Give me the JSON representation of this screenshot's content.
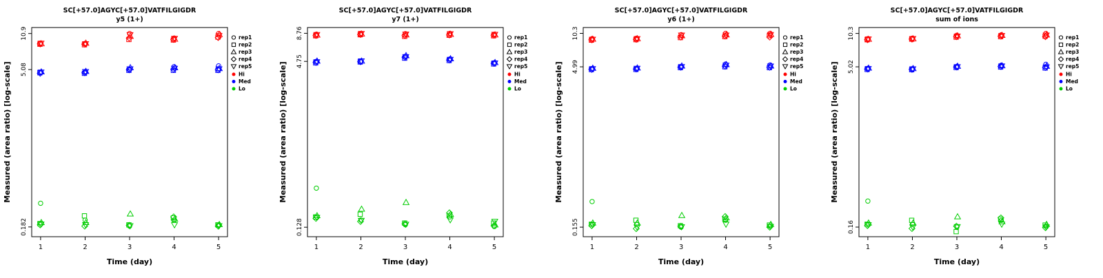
{
  "figure": {
    "background": "#ffffff",
    "axis_color": "#000000"
  },
  "legend": {
    "rep_labels": [
      "rep1",
      "rep2",
      "rep3",
      "rep4",
      "rep5"
    ],
    "rep_shapes": [
      "circle",
      "square",
      "triangle-up",
      "diamond",
      "triangle-down"
    ],
    "group_labels": [
      "Hi",
      "Med",
      "Lo"
    ],
    "group_colors": [
      "#FF0000",
      "#0000FF",
      "#00CC00"
    ]
  },
  "chart_data": [
    {
      "type": "scatter",
      "title": "SC[+57.0]AGYC[+57.0]VATFILGIGDR",
      "subtitle": "y5 (1+)",
      "xlabel": "Time (day)",
      "ylabel": "Measured (area ratio) [log-scale]",
      "x_ticks": [
        1,
        2,
        3,
        4,
        5
      ],
      "y_ticks": [
        0.182,
        5.08,
        10.9
      ],
      "y_tick_labels": [
        "0.182",
        "5.08",
        "10.9"
      ],
      "y_scale": "log",
      "series": [
        {
          "name": "Hi",
          "color": "#FF0000",
          "values": [
            [
              8.9,
              8.7,
              8.8,
              8.75,
              8.85
            ],
            [
              8.8,
              8.6,
              8.9,
              8.7,
              8.75
            ],
            [
              10.9,
              9.6,
              10.3,
              9.9,
              10.6
            ],
            [
              9.9,
              9.5,
              9.7,
              9.6,
              9.8
            ],
            [
              10.9,
              10.1,
              10.7,
              10.0,
              10.4
            ]
          ]
        },
        {
          "name": "Med",
          "color": "#0000FF",
          "values": [
            [
              4.8,
              4.75,
              4.85,
              4.7,
              4.8
            ],
            [
              4.8,
              4.7,
              4.9,
              4.75,
              4.85
            ],
            [
              5.1,
              5.0,
              5.3,
              5.05,
              5.15
            ],
            [
              5.4,
              5.0,
              5.3,
              5.1,
              5.2
            ],
            [
              5.5,
              5.0,
              5.2,
              5.05,
              5.15
            ]
          ]
        },
        {
          "name": "Lo",
          "color": "#00CC00",
          "values": [
            [
              0.3,
              0.195,
              0.2,
              0.19,
              0.193
            ],
            [
              0.21,
              0.23,
              0.2,
              0.185,
              0.19
            ],
            [
              0.185,
              0.19,
              0.24,
              0.188,
              0.186
            ],
            [
              0.21,
              0.22,
              0.215,
              0.225,
              0.19
            ],
            [
              0.188,
              0.19,
              0.192,
              0.185,
              0.186
            ]
          ]
        }
      ]
    },
    {
      "type": "scatter",
      "title": "SC[+57.0]AGYC[+57.0]VATFILGIGDR",
      "subtitle": "y7 (1+)",
      "xlabel": "Time (day)",
      "ylabel": "Measured (area ratio) [log-scale]",
      "x_ticks": [
        1,
        2,
        3,
        4,
        5
      ],
      "y_ticks": [
        0.128,
        4.75,
        8.76
      ],
      "y_tick_labels": [
        "0.128",
        "4.75",
        "8.76"
      ],
      "y_scale": "log",
      "series": [
        {
          "name": "Hi",
          "color": "#FF0000",
          "values": [
            [
              8.6,
              8.3,
              8.45,
              8.35,
              8.5
            ],
            [
              8.76,
              8.5,
              8.65,
              8.55,
              8.7
            ],
            [
              8.7,
              8.2,
              8.5,
              8.35,
              8.6
            ],
            [
              8.76,
              8.4,
              8.6,
              8.45,
              8.65
            ],
            [
              8.6,
              8.3,
              8.5,
              8.4,
              8.55
            ]
          ]
        },
        {
          "name": "Med",
          "color": "#0000FF",
          "values": [
            [
              4.75,
              4.6,
              4.8,
              4.65,
              4.7
            ],
            [
              4.75,
              4.7,
              4.8,
              4.72,
              4.78
            ],
            [
              5.3,
              5.1,
              5.4,
              5.2,
              5.25
            ],
            [
              5.0,
              4.85,
              5.05,
              4.9,
              4.95
            ],
            [
              4.6,
              4.5,
              4.65,
              4.55,
              4.58
            ]
          ]
        },
        {
          "name": "Lo",
          "color": "#00CC00",
          "values": [
            [
              0.3,
              0.16,
              0.165,
              0.155,
              0.158
            ],
            [
              0.15,
              0.17,
              0.19,
              0.145,
              0.148
            ],
            [
              0.135,
              0.14,
              0.22,
              0.138,
              0.136
            ],
            [
              0.16,
              0.165,
              0.17,
              0.175,
              0.15
            ],
            [
              0.13,
              0.14,
              0.135,
              0.132,
              0.145
            ]
          ]
        }
      ]
    },
    {
      "type": "scatter",
      "title": "SC[+57.0]AGYC[+57.0]VATFILGIGDR",
      "subtitle": "y6 (1+)",
      "xlabel": "Time (day)",
      "ylabel": "Measured (area ratio) [log-scale]",
      "x_ticks": [
        1,
        2,
        3,
        4,
        5
      ],
      "y_ticks": [
        0.155,
        4.99,
        10.3
      ],
      "y_tick_labels": [
        "0.155",
        "4.99",
        "10.3"
      ],
      "y_scale": "log",
      "series": [
        {
          "name": "Hi",
          "color": "#FF0000",
          "values": [
            [
              9.2,
              8.9,
              9.1,
              8.95,
              9.05
            ],
            [
              9.3,
              9.0,
              9.2,
              9.05,
              9.15
            ],
            [
              10.0,
              9.4,
              9.8,
              9.5,
              9.9
            ],
            [
              10.3,
              9.6,
              10.0,
              9.7,
              9.9
            ],
            [
              10.3,
              9.8,
              10.1,
              9.5,
              10.0
            ]
          ]
        },
        {
          "name": "Med",
          "color": "#0000FF",
          "values": [
            [
              4.8,
              4.7,
              4.85,
              4.72,
              4.78
            ],
            [
              4.8,
              4.72,
              4.88,
              4.75,
              4.82
            ],
            [
              5.0,
              4.9,
              5.1,
              4.95,
              5.0
            ],
            [
              5.3,
              5.0,
              5.25,
              5.05,
              5.15
            ],
            [
              5.2,
              4.9,
              5.1,
              4.95,
              5.05
            ]
          ]
        },
        {
          "name": "Lo",
          "color": "#00CC00",
          "values": [
            [
              0.27,
              0.165,
              0.17,
              0.16,
              0.163
            ],
            [
              0.165,
              0.18,
              0.17,
              0.15,
              0.155
            ],
            [
              0.155,
              0.16,
              0.2,
              0.158,
              0.156
            ],
            [
              0.18,
              0.185,
              0.19,
              0.195,
              0.165
            ],
            [
              0.158,
              0.162,
              0.165,
              0.155,
              0.157
            ]
          ]
        }
      ]
    },
    {
      "type": "scatter",
      "title": "SC[+57.0]AGYC[+57.0]VATFILGIGDR",
      "subtitle": "sum of ions",
      "xlabel": "Time (day)",
      "ylabel": "Measured (area ratio) [log-scale]",
      "x_ticks": [
        1,
        2,
        3,
        4,
        5
      ],
      "y_ticks": [
        0.16,
        5.02,
        10.3
      ],
      "y_tick_labels": [
        "0.16",
        "5.02",
        "10.3"
      ],
      "y_scale": "log",
      "series": [
        {
          "name": "Hi",
          "color": "#FF0000",
          "values": [
            [
              9.2,
              9.0,
              9.1,
              9.0,
              9.1
            ],
            [
              9.3,
              9.1,
              9.2,
              9.1,
              9.2
            ],
            [
              9.9,
              9.5,
              9.8,
              9.6,
              9.7
            ],
            [
              10.0,
              9.6,
              9.9,
              9.7,
              9.8
            ],
            [
              10.3,
              9.7,
              10.0,
              9.6,
              9.9
            ]
          ]
        },
        {
          "name": "Med",
          "color": "#0000FF",
          "values": [
            [
              4.85,
              4.75,
              4.9,
              4.78,
              4.82
            ],
            [
              4.8,
              4.72,
              4.85,
              4.75,
              4.8
            ],
            [
              5.05,
              4.95,
              5.1,
              5.0,
              5.02
            ],
            [
              5.2,
              5.0,
              5.15,
              5.05,
              5.1
            ],
            [
              5.3,
              4.9,
              5.1,
              4.95,
              5.0
            ]
          ]
        },
        {
          "name": "Lo",
          "color": "#00CC00",
          "values": [
            [
              0.28,
              0.17,
              0.175,
              0.165,
              0.168
            ],
            [
              0.17,
              0.185,
              0.175,
              0.155,
              0.16
            ],
            [
              0.16,
              0.145,
              0.2,
              0.163,
              0.161
            ],
            [
              0.185,
              0.19,
              0.18,
              0.195,
              0.17
            ],
            [
              0.163,
              0.167,
              0.17,
              0.158,
              0.16
            ]
          ]
        }
      ]
    }
  ]
}
